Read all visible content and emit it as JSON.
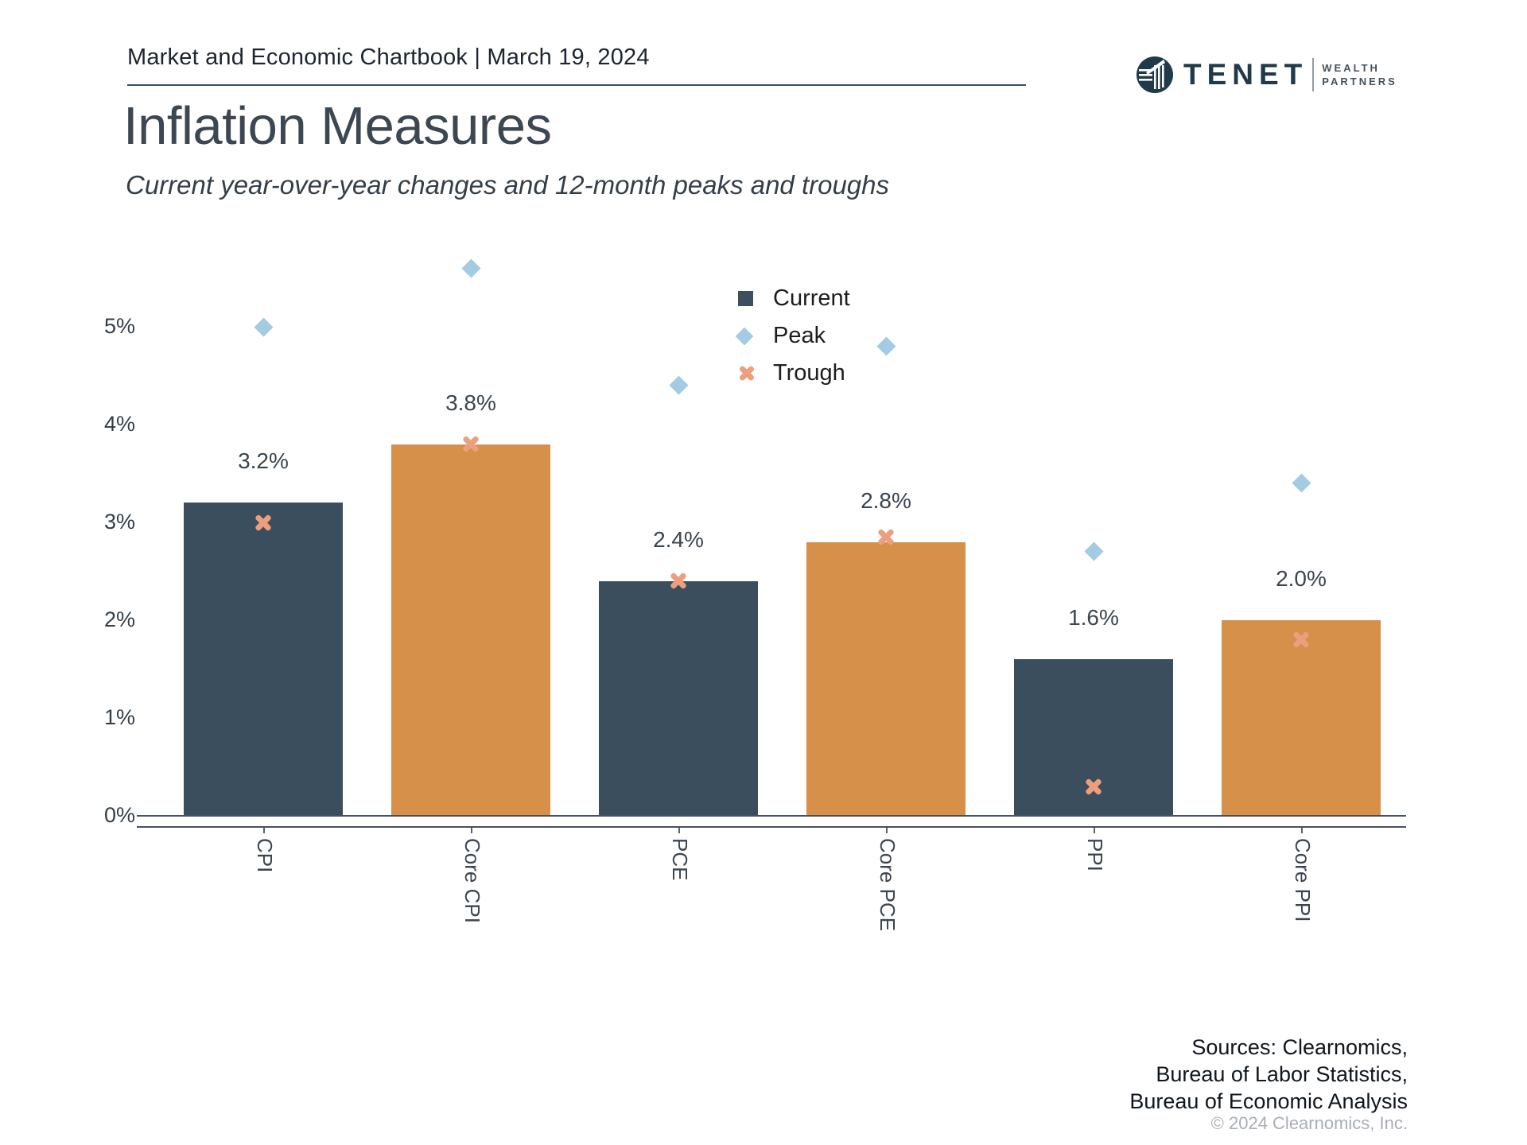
{
  "header": {
    "chartbook_title": "Market and Economic Chartbook | March 19, 2024",
    "page_title": "Inflation Measures",
    "subtitle": "Current year-over-year changes and 12-month peaks and troughs"
  },
  "logo": {
    "brand": "TENET",
    "tagline_line1": "WEALTH",
    "tagline_line2": "PARTNERS"
  },
  "legend": {
    "items": [
      {
        "label": "Current",
        "marker": "square",
        "color": "#3c4f5f"
      },
      {
        "label": "Peak",
        "marker": "diamond",
        "color": "#a3cbe3"
      },
      {
        "label": "Trough",
        "marker": "x",
        "color": "#ec9e7d"
      }
    ]
  },
  "chart_data": {
    "type": "bar",
    "title": "Inflation Measures",
    "subtitle": "Current year-over-year changes and 12-month peaks and troughs",
    "categories": [
      "CPI",
      "Core CPI",
      "PCE",
      "Core PCE",
      "PPI",
      "Core PPI"
    ],
    "series": [
      {
        "name": "Current",
        "type": "bar",
        "values": [
          3.2,
          3.8,
          2.4,
          2.8,
          1.6,
          2.0
        ],
        "labels": [
          "3.2%",
          "3.8%",
          "2.4%",
          "2.8%",
          "1.6%",
          "2.0%"
        ]
      },
      {
        "name": "Peak",
        "type": "scatter-diamond",
        "values": [
          5.0,
          5.6,
          4.4,
          4.8,
          2.7,
          3.4
        ]
      },
      {
        "name": "Trough",
        "type": "scatter-x",
        "values": [
          3.0,
          3.8,
          2.4,
          2.85,
          0.3,
          1.8
        ]
      }
    ],
    "bar_colors": [
      "#3b4e5e",
      "#d79049",
      "#3b4e5e",
      "#d79049",
      "#3b4e5e",
      "#d79049"
    ],
    "ylim": [
      0,
      5.8
    ],
    "yticks": [
      0,
      1,
      2,
      3,
      4,
      5
    ],
    "ytick_labels": [
      "0%",
      "1%",
      "2%",
      "3%",
      "4%",
      "5%"
    ],
    "grid": false,
    "legend_position": "top-center-right",
    "units": "percent year-over-year"
  },
  "colors": {
    "bar_navy": "#3b4e5e",
    "bar_orange": "#d79049",
    "peak_blue": "#a3cbe3",
    "trough_salmon": "#ec9e7d",
    "title_text": "#3d4752",
    "axis_line": "#46525e",
    "logo_teal": "#1f3a49"
  },
  "footer": {
    "sources_line1": "Sources: Clearnomics,",
    "sources_line2": "Bureau of Labor Statistics,",
    "sources_line3": "Bureau of Economic Analysis",
    "copyright": "© 2024 Clearnomics, Inc."
  }
}
